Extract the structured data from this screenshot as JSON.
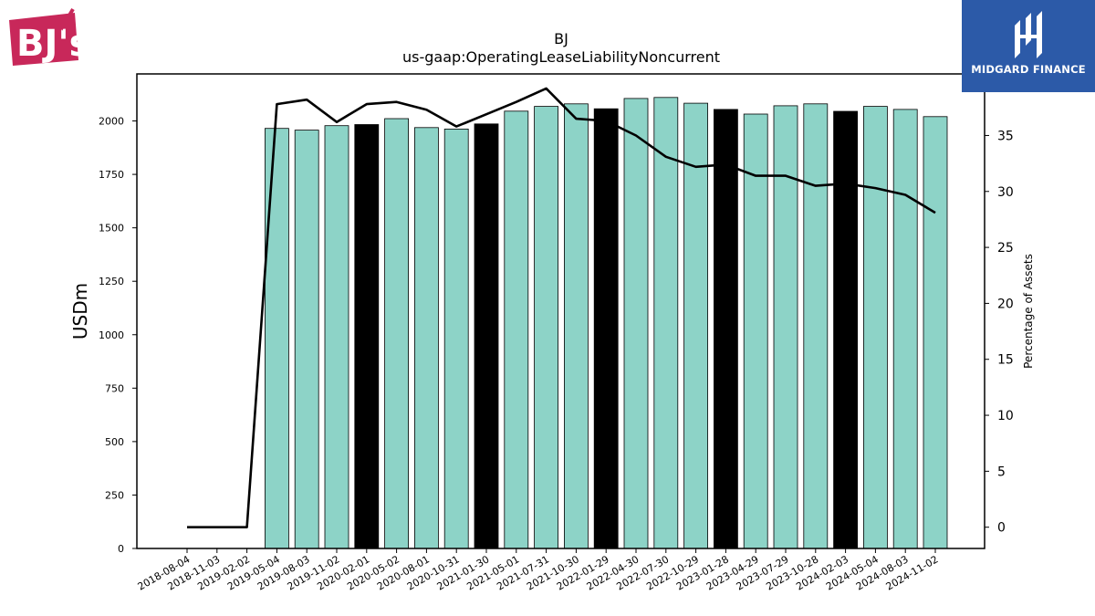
{
  "logos": {
    "bj_text": "BJ's",
    "midgard_text": "MIDGARD FINANCE"
  },
  "chart_data": {
    "type": "bar",
    "title": "BJ",
    "subtitle": "us-gaap:OperatingLeaseLiabilityNoncurrent",
    "ylabel": "USDm",
    "y2label": "Percentage of Assets",
    "categories": [
      "2018-08-04",
      "2018-11-03",
      "2019-02-02",
      "2019-05-04",
      "2019-08-03",
      "2019-11-02",
      "2020-02-01",
      "2020-05-02",
      "2020-08-01",
      "2020-10-31",
      "2021-01-30",
      "2021-05-01",
      "2021-07-31",
      "2021-10-30",
      "2022-01-29",
      "2022-04-30",
      "2022-07-30",
      "2022-10-29",
      "2023-01-28",
      "2023-04-29",
      "2023-07-29",
      "2023-10-28",
      "2024-02-03",
      "2024-05-04",
      "2024-08-03",
      "2024-11-02"
    ],
    "series": [
      {
        "type": "bar",
        "axis": "left",
        "values": [
          null,
          null,
          null,
          1965,
          1957,
          1978,
          1983,
          2011,
          1969,
          1962,
          1986,
          2046,
          2068,
          2080,
          2057,
          2105,
          2110,
          2083,
          2054,
          2032,
          2071,
          2080,
          2045,
          2068,
          2054,
          2020
        ],
        "colors": [
          "#8dd3c7",
          "#8dd3c7",
          "#8dd3c7",
          "#8dd3c7",
          "#8dd3c7",
          "#8dd3c7",
          "#000000",
          "#8dd3c7",
          "#8dd3c7",
          "#8dd3c7",
          "#000000",
          "#8dd3c7",
          "#8dd3c7",
          "#8dd3c7",
          "#000000",
          "#8dd3c7",
          "#8dd3c7",
          "#8dd3c7",
          "#000000",
          "#8dd3c7",
          "#8dd3c7",
          "#8dd3c7",
          "#000000",
          "#8dd3c7",
          "#8dd3c7",
          "#8dd3c7"
        ]
      },
      {
        "type": "line",
        "axis": "right",
        "values": [
          0,
          0,
          0,
          37.8,
          38.2,
          36.2,
          37.8,
          38.0,
          37.3,
          35.8,
          36.9,
          38.0,
          39.2,
          36.5,
          36.3,
          35.0,
          33.1,
          32.2,
          32.4,
          31.4,
          31.4,
          30.5,
          30.7,
          30.3,
          29.7,
          28.1
        ],
        "color": "#000000"
      }
    ],
    "ylim": [
      0,
      2220
    ],
    "yticks": [
      0,
      250,
      500,
      750,
      1000,
      1250,
      1500,
      1750,
      2000
    ],
    "y2lim": [
      -1.9,
      40.5
    ],
    "y2ticks": [
      0,
      5,
      10,
      15,
      20,
      25,
      30,
      35
    ],
    "bar_edge_color": "#000000",
    "grid": false,
    "legend": "none"
  }
}
